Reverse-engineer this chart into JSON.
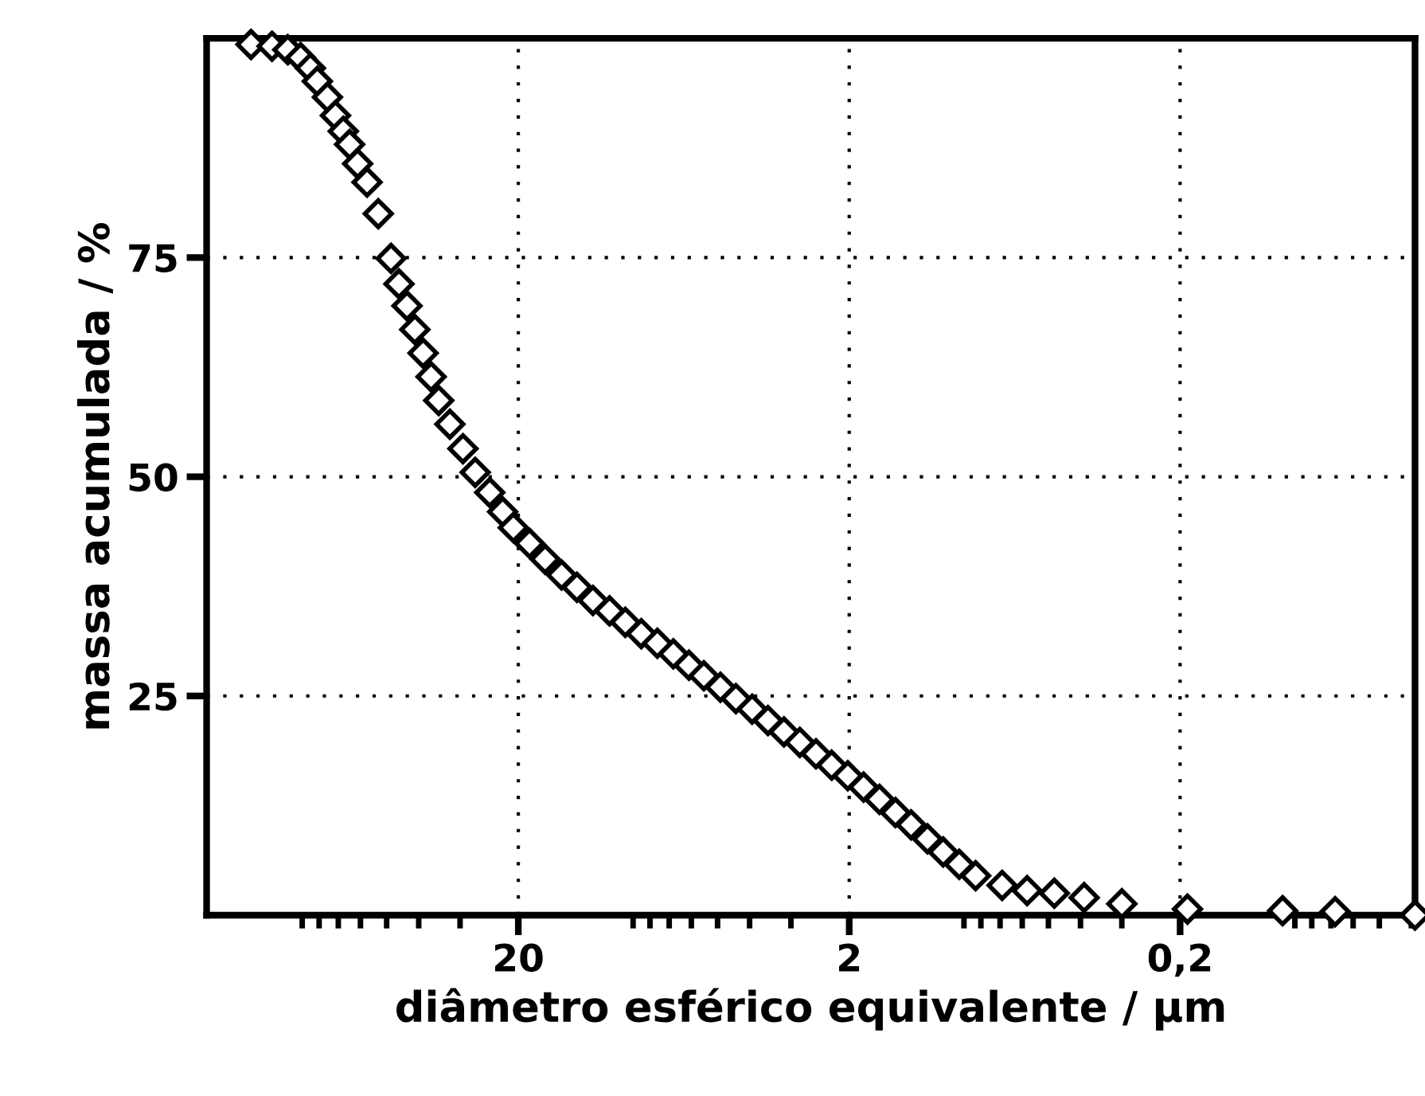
{
  "chart_data": {
    "type": "scatter",
    "xlabel": "diâmetro esférico equivalente / μm",
    "ylabel": "massa acumulada / %",
    "x": [
      128.5,
      111,
      99.5,
      91,
      85,
      81,
      75.5,
      71.4,
      67.6,
      64.7,
      61.2,
      57.3,
      53,
      48.5,
      45.9,
      43.4,
      41.1,
      38.8,
      36.7,
      34.8,
      32.2,
      29.4,
      27,
      24.4,
      22.3,
      20.7,
      18.5,
      16.6,
      14.8,
      13.3,
      11.9,
      10.6,
      9.5,
      8.5,
      7.6,
      6.8,
      6.1,
      5.5,
      4.9,
      4.4,
      3.93,
      3.52,
      3.15,
      2.82,
      2.52,
      2.26,
      2.02,
      1.81,
      1.62,
      1.45,
      1.3,
      1.16,
      1.04,
      0.93,
      0.83,
      0.69,
      0.58,
      0.48,
      0.39,
      0.3,
      0.19,
      0.098,
      0.068,
      0.039
    ],
    "values": [
      99.3,
      99.1,
      98.7,
      97.8,
      96.6,
      95.1,
      93.3,
      91.2,
      89.4,
      87.9,
      85.7,
      83.6,
      80,
      74.9,
      72,
      69.5,
      66.8,
      64.1,
      61.4,
      58.7,
      56,
      53.2,
      50.5,
      48.2,
      46,
      44.2,
      42.4,
      40.6,
      38.8,
      37.4,
      35.9,
      34.7,
      33.4,
      32.1,
      31,
      29.8,
      28.5,
      27.3,
      26,
      24.7,
      23.5,
      22.2,
      20.9,
      19.7,
      18.4,
      17.1,
      15.9,
      14.6,
      13.2,
      11.7,
      10.3,
      8.7,
      7.2,
      5.8,
      4.5,
      3.4,
      2.8,
      2.5,
      2,
      1.3,
      0.7,
      0.5,
      0.4,
      0
    ],
    "color": "#000000",
    "marker": "diamond",
    "log": "x",
    "xlim": [
      175,
      0.039
    ],
    "xticks": [
      20,
      2,
      {
        "value": 0.2,
        "label": "0,2"
      }
    ],
    "ylim": [
      0,
      100
    ],
    "yticks": [
      25,
      50,
      75
    ],
    "grid": true
  }
}
